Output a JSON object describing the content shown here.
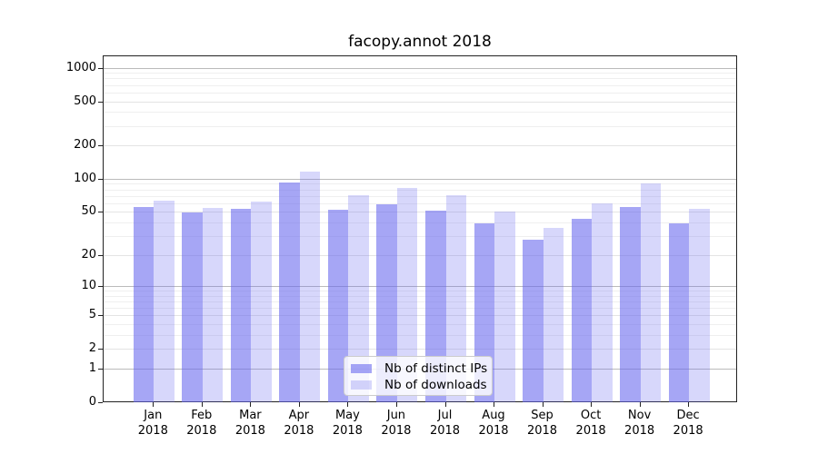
{
  "title": "facopy.annot 2018",
  "chart_data": {
    "type": "bar",
    "y_scale": "log10(value+1)",
    "categories": [
      "Jan",
      "Feb",
      "Mar",
      "Apr",
      "May",
      "Jun",
      "Jul",
      "Aug",
      "Sep",
      "Oct",
      "Nov",
      "Dec"
    ],
    "x_year": "2018",
    "series": [
      {
        "name": "Nb of distinct IPs",
        "color": "rgba(102,102,238,0.58)",
        "values": [
          57,
          50,
          54,
          95,
          53,
          60,
          52,
          40,
          28,
          44,
          57,
          40
        ]
      },
      {
        "name": "Nb of downloads",
        "color": "rgba(102,102,238,0.26)",
        "values": [
          65,
          55,
          63,
          118,
          73,
          84,
          73,
          51,
          36,
          61,
          93,
          54
        ]
      }
    ],
    "y_ticks": [
      0,
      1,
      2,
      5,
      10,
      20,
      50,
      100,
      200,
      500,
      1000
    ],
    "y_minor_ticks": [
      3,
      4,
      6,
      7,
      8,
      9,
      30,
      40,
      60,
      70,
      80,
      90,
      300,
      400,
      600,
      700,
      800,
      900
    ],
    "ylim": [
      0,
      1265
    ],
    "grid": true,
    "legend_position": "lower-center"
  },
  "colors": {
    "grid_major": "#bbbbbb",
    "grid_labeled": "#e4e4e4",
    "grid_minor": "#efefef",
    "spine": "#222222",
    "background": "#ffffff"
  }
}
